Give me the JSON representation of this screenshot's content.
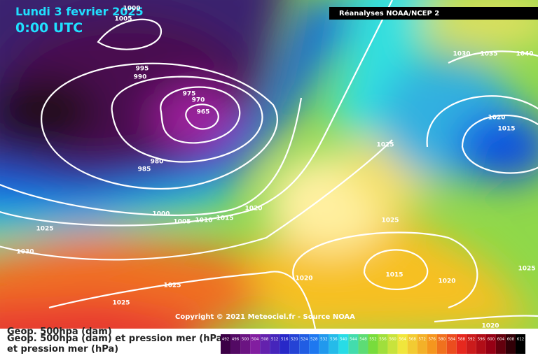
{
  "header": {
    "date": "Lundi 3 fevrier 2025",
    "time": "0:00 UTC",
    "source": "Réanalyses NOAA/NCEP 2"
  },
  "isobar_labels": [
    1000,
    1005,
    995,
    990,
    975,
    970,
    965,
    980,
    985,
    1000,
    1005,
    1010,
    1015,
    1020,
    1025,
    1030,
    1025,
    1025,
    1030,
    1035,
    1040,
    1020,
    1015,
    1025,
    1025,
    1020,
    1015,
    1020,
    1025,
    1020
  ],
  "copyright": "Copyright © 2021 Meteociel.fr - Source NOAA",
  "legend": {
    "line1": "Geop. 500hpa (dam)",
    "line2": "Geop. 500hpa (dam) et pression mer (hPa)",
    "line3": "et pression mer (hPa)"
  },
  "scale": [
    492,
    496,
    500,
    504,
    508,
    512,
    516,
    520,
    524,
    528,
    532,
    536,
    540,
    544,
    548,
    552,
    556,
    560,
    564,
    568,
    572,
    576,
    580,
    584,
    588,
    592,
    596,
    600,
    604,
    608,
    612
  ]
}
